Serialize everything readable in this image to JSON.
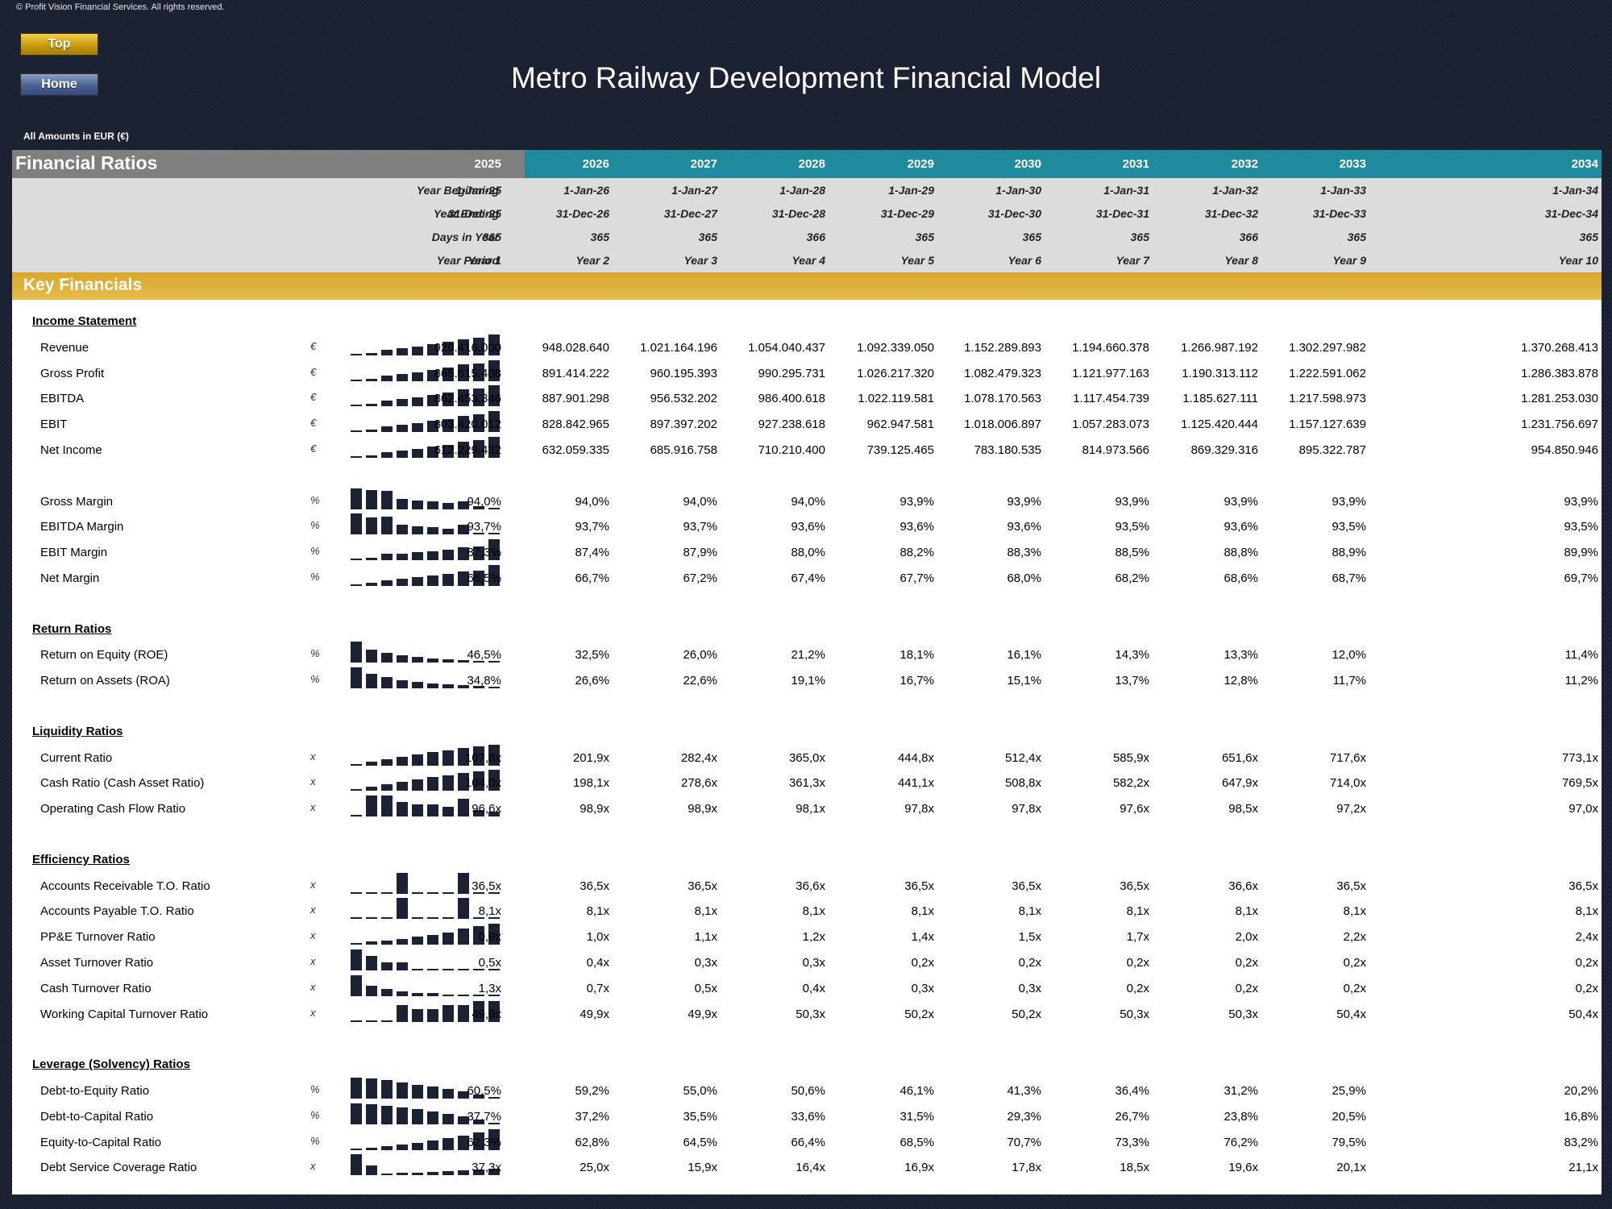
{
  "copyright": "© Profit Vision Financial Services. All rights reserved.",
  "nav": {
    "top": "Top",
    "home": "Home"
  },
  "title": "Metro Railway Development Financial Model",
  "amounts_note": "All Amounts in  EUR (€)",
  "header": {
    "section_title": "Financial Ratios",
    "years": [
      "2025",
      "2026",
      "2027",
      "2028",
      "2029",
      "2030",
      "2031",
      "2032",
      "2033",
      "2034"
    ]
  },
  "year_info": [
    {
      "label": "Year Beginning",
      "values": [
        "1-Jan-25",
        "1-Jan-26",
        "1-Jan-27",
        "1-Jan-28",
        "1-Jan-29",
        "1-Jan-30",
        "1-Jan-31",
        "1-Jan-32",
        "1-Jan-33",
        "1-Jan-34"
      ]
    },
    {
      "label": "Year Ending",
      "values": [
        "31-Dec-25",
        "31-Dec-26",
        "31-Dec-27",
        "31-Dec-28",
        "31-Dec-29",
        "31-Dec-30",
        "31-Dec-31",
        "31-Dec-32",
        "31-Dec-33",
        "31-Dec-34"
      ]
    },
    {
      "label": "Days in Year",
      "values": [
        "365",
        "365",
        "365",
        "366",
        "365",
        "365",
        "365",
        "366",
        "365",
        "365"
      ]
    },
    {
      "label": "Year Period",
      "values": [
        "Year 1",
        "Year 2",
        "Year 3",
        "Year 4",
        "Year 5",
        "Year 6",
        "Year 7",
        "Year 8",
        "Year 9",
        "Year 10"
      ]
    }
  ],
  "band_title": "Key Financials",
  "rows": [
    {
      "type": "section",
      "label": "Income Statement"
    },
    {
      "type": "data",
      "label": "Revenue",
      "unit": "€",
      "spark": [
        920416000,
        948028640,
        1021164196,
        1054040437,
        1092339050,
        1152289893,
        1194660378,
        1266987192,
        1302297982,
        1370268413
      ],
      "values": [
        "920.416.000",
        "948.028.640",
        "1.021.164.196",
        "1.054.040.437",
        "1.092.339.050",
        "1.152.289.893",
        "1.194.660.378",
        "1.266.987.192",
        "1.302.297.982",
        "1.370.268.413"
      ]
    },
    {
      "type": "data",
      "label": "Gross Profit",
      "unit": "€",
      "spark": [
        865615408,
        891414222,
        960195393,
        990295731,
        1026217320,
        1082479323,
        1121977163,
        1190313112,
        1222591062,
        1286383878
      ],
      "values": [
        "865.615.408",
        "891.414.222",
        "960.195.393",
        "990.295.731",
        "1.026.217.320",
        "1.082.479.323",
        "1.121.977.163",
        "1.190.313.112",
        "1.222.591.062",
        "1.286.383.878"
      ]
    },
    {
      "type": "data",
      "label": "EBITDA",
      "unit": "€",
      "spark": [
        862453346,
        887901298,
        956532202,
        986400618,
        1022119581,
        1078170563,
        1117454739,
        1185627111,
        1217598973,
        1281253030
      ],
      "values": [
        "862.453.346",
        "887.901.298",
        "956.532.202",
        "986.400.618",
        "1.022.119.581",
        "1.078.170.563",
        "1.117.454.739",
        "1.185.627.111",
        "1.217.598.973",
        "1.281.253.030"
      ]
    },
    {
      "type": "data",
      "label": "EBIT",
      "unit": "€",
      "spark": [
        803420012,
        828842965,
        897397202,
        927238618,
        962947581,
        1018006897,
        1057283073,
        1125420444,
        1157127639,
        1231756697
      ],
      "values": [
        "803.420.012",
        "828.842.965",
        "897.397.202",
        "927.238.618",
        "962.947.581",
        "1.018.006.897",
        "1.057.283.073",
        "1.125.420.444",
        "1.157.127.639",
        "1.231.756.697"
      ]
    },
    {
      "type": "data",
      "label": "Net Income",
      "unit": "€",
      "spark": [
        612229432,
        632059335,
        685916758,
        710210400,
        739125465,
        783180535,
        814973566,
        869329316,
        895322787,
        954850946
      ],
      "values": [
        "612.229.432",
        "632.059.335",
        "685.916.758",
        "710.210.400",
        "739.125.465",
        "783.180.535",
        "814.973.566",
        "869.329.316",
        "895.322.787",
        "954.850.946"
      ]
    },
    {
      "type": "blank"
    },
    {
      "type": "data",
      "label": "Gross Margin",
      "unit": "%",
      "spark": [
        94.04,
        94.03,
        94.02,
        93.95,
        93.94,
        93.93,
        93.92,
        93.93,
        93.89,
        93.88
      ],
      "values": [
        "94,0%",
        "94,0%",
        "94,0%",
        "94,0%",
        "93,9%",
        "93,9%",
        "93,9%",
        "93,9%",
        "93,9%",
        "93,9%"
      ]
    },
    {
      "type": "data",
      "label": "EBITDA Margin",
      "unit": "%",
      "spark": [
        93.7,
        93.66,
        93.67,
        93.58,
        93.57,
        93.56,
        93.54,
        93.58,
        93.5,
        93.5
      ],
      "values": [
        "93,7%",
        "93,7%",
        "93,7%",
        "93,6%",
        "93,6%",
        "93,6%",
        "93,5%",
        "93,6%",
        "93,5%",
        "93,5%"
      ]
    },
    {
      "type": "data",
      "label": "EBIT Margin",
      "unit": "%",
      "spark": [
        87.3,
        87.4,
        87.9,
        88.0,
        88.2,
        88.3,
        88.5,
        88.8,
        88.9,
        89.9
      ],
      "values": [
        "87,3%",
        "87,4%",
        "87,9%",
        "88,0%",
        "88,2%",
        "88,3%",
        "88,5%",
        "88,8%",
        "88,9%",
        "89,9%"
      ]
    },
    {
      "type": "data",
      "label": "Net Margin",
      "unit": "%",
      "spark": [
        66.5,
        66.7,
        67.2,
        67.4,
        67.7,
        68.0,
        68.2,
        68.6,
        68.7,
        69.7
      ],
      "values": [
        "66,5%",
        "66,7%",
        "67,2%",
        "67,4%",
        "67,7%",
        "68,0%",
        "68,2%",
        "68,6%",
        "68,7%",
        "69,7%"
      ]
    },
    {
      "type": "blank"
    },
    {
      "type": "section",
      "label": "Return Ratios"
    },
    {
      "type": "data",
      "label": "Return on Equity (ROE)",
      "unit": "%",
      "spark": [
        46.5,
        32.5,
        26.0,
        21.2,
        18.1,
        16.1,
        14.3,
        13.3,
        12.0,
        11.4
      ],
      "values": [
        "46,5%",
        "32,5%",
        "26,0%",
        "21,2%",
        "18,1%",
        "16,1%",
        "14,3%",
        "13,3%",
        "12,0%",
        "11,4%"
      ]
    },
    {
      "type": "data",
      "label": "Return on Assets (ROA)",
      "unit": "%",
      "spark": [
        34.8,
        26.6,
        22.6,
        19.1,
        16.7,
        15.1,
        13.7,
        12.8,
        11.7,
        11.2
      ],
      "values": [
        "34,8%",
        "26,6%",
        "22,6%",
        "19,1%",
        "16,7%",
        "15,1%",
        "13,7%",
        "12,8%",
        "11,7%",
        "11,2%"
      ]
    },
    {
      "type": "blank"
    },
    {
      "type": "section",
      "label": "Liquidity Ratios"
    },
    {
      "type": "data",
      "label": "Current Ratio",
      "unit": "x",
      "spark": [
        107.8,
        201.9,
        282.4,
        365.0,
        444.8,
        512.4,
        585.9,
        651.6,
        717.6,
        773.1
      ],
      "values": [
        "107,8x",
        "201,9x",
        "282,4x",
        "365,0x",
        "444,8x",
        "512,4x",
        "585,9x",
        "651,6x",
        "717,6x",
        "773,1x"
      ]
    },
    {
      "type": "data",
      "label": "Cash Ratio (Cash Asset Ratio)",
      "unit": "x",
      "spark": [
        104.0,
        198.1,
        278.6,
        361.3,
        441.1,
        508.8,
        582.2,
        647.9,
        714.0,
        769.5
      ],
      "values": [
        "104,0x",
        "198,1x",
        "278,6x",
        "361,3x",
        "441,1x",
        "508,8x",
        "582,2x",
        "647,9x",
        "714,0x",
        "769,5x"
      ]
    },
    {
      "type": "data",
      "label": "Operating Cash Flow Ratio",
      "unit": "x",
      "spark": [
        96.6,
        98.9,
        98.9,
        98.1,
        97.8,
        97.8,
        97.6,
        98.5,
        97.2,
        97.0
      ],
      "values": [
        "96,6x",
        "98,9x",
        "98,9x",
        "98,1x",
        "97,8x",
        "97,8x",
        "97,6x",
        "98,5x",
        "97,2x",
        "97,0x"
      ]
    },
    {
      "type": "blank"
    },
    {
      "type": "section",
      "label": "Efficiency Ratios"
    },
    {
      "type": "data",
      "label": "Accounts Receivable T.O. Ratio",
      "unit": "x",
      "spark": [
        36.5,
        36.5,
        36.5,
        36.6,
        36.5,
        36.5,
        36.5,
        36.6,
        36.5,
        36.5
      ],
      "values": [
        "36,5x",
        "36,5x",
        "36,5x",
        "36,6x",
        "36,5x",
        "36,5x",
        "36,5x",
        "36,6x",
        "36,5x",
        "36,5x"
      ]
    },
    {
      "type": "data",
      "label": "Accounts Payable T.O. Ratio",
      "unit": "x",
      "spark": [
        8.1,
        8.1,
        8.1,
        8.12,
        8.1,
        8.1,
        8.1,
        8.12,
        8.1,
        8.1
      ],
      "values": [
        "8,1x",
        "8,1x",
        "8,1x",
        "8,1x",
        "8,1x",
        "8,1x",
        "8,1x",
        "8,1x",
        "8,1x",
        "8,1x"
      ]
    },
    {
      "type": "data",
      "label": "PP&E Turnover Ratio",
      "unit": "x",
      "spark": [
        0.9,
        1.0,
        1.1,
        1.2,
        1.4,
        1.5,
        1.7,
        2.0,
        2.2,
        2.4
      ],
      "values": [
        "0,9x",
        "1,0x",
        "1,1x",
        "1,2x",
        "1,4x",
        "1,5x",
        "1,7x",
        "2,0x",
        "2,2x",
        "2,4x"
      ]
    },
    {
      "type": "data",
      "label": "Asset Turnover Ratio",
      "unit": "x",
      "spark": [
        0.5,
        0.4,
        0.3,
        0.3,
        0.2,
        0.2,
        0.2,
        0.2,
        0.2,
        0.2
      ],
      "values": [
        "0,5x",
        "0,4x",
        "0,3x",
        "0,3x",
        "0,2x",
        "0,2x",
        "0,2x",
        "0,2x",
        "0,2x",
        "0,2x"
      ]
    },
    {
      "type": "data",
      "label": "Cash Turnover Ratio",
      "unit": "x",
      "spark": [
        1.3,
        0.7,
        0.5,
        0.4,
        0.3,
        0.3,
        0.2,
        0.2,
        0.2,
        0.2
      ],
      "values": [
        "1,3x",
        "0,7x",
        "0,5x",
        "0,4x",
        "0,3x",
        "0,3x",
        "0,2x",
        "0,2x",
        "0,2x",
        "0,2x"
      ]
    },
    {
      "type": "data",
      "label": "Working Capital Turnover Ratio",
      "unit": "x",
      "spark": [
        49.9,
        49.9,
        49.9,
        50.3,
        50.2,
        50.2,
        50.3,
        50.3,
        50.4,
        50.4
      ],
      "values": [
        "49,9x",
        "49,9x",
        "49,9x",
        "50,3x",
        "50,2x",
        "50,2x",
        "50,3x",
        "50,3x",
        "50,4x",
        "50,4x"
      ]
    },
    {
      "type": "blank"
    },
    {
      "type": "section",
      "label": "Leverage (Solvency) Ratios"
    },
    {
      "type": "data",
      "label": "Debt-to-Equity Ratio",
      "unit": "%",
      "spark": [
        60.5,
        59.2,
        55.0,
        50.6,
        46.1,
        41.3,
        36.4,
        31.2,
        25.9,
        20.2
      ],
      "values": [
        "60,5%",
        "59,2%",
        "55,0%",
        "50,6%",
        "46,1%",
        "41,3%",
        "36,4%",
        "31,2%",
        "25,9%",
        "20,2%"
      ]
    },
    {
      "type": "data",
      "label": "Debt-to-Capital Ratio",
      "unit": "%",
      "spark": [
        37.7,
        37.2,
        35.5,
        33.6,
        31.5,
        29.3,
        26.7,
        23.8,
        20.5,
        16.8
      ],
      "values": [
        "37,7%",
        "37,2%",
        "35,5%",
        "33,6%",
        "31,5%",
        "29,3%",
        "26,7%",
        "23,8%",
        "20,5%",
        "16,8%"
      ]
    },
    {
      "type": "data",
      "label": "Equity-to-Capital Ratio",
      "unit": "%",
      "spark": [
        62.3,
        62.8,
        64.5,
        66.4,
        68.5,
        70.7,
        73.3,
        76.2,
        79.5,
        83.2
      ],
      "values": [
        "62,3%",
        "62,8%",
        "64,5%",
        "66,4%",
        "68,5%",
        "70,7%",
        "73,3%",
        "76,2%",
        "79,5%",
        "83,2%"
      ]
    },
    {
      "type": "data",
      "label": "Debt Service Coverage Ratio",
      "unit": "x",
      "spark": [
        37.3,
        25.0,
        15.9,
        16.4,
        16.9,
        17.8,
        18.5,
        19.6,
        20.1,
        21.1
      ],
      "values": [
        "37,3x",
        "25,0x",
        "15,9x",
        "16,4x",
        "16,9x",
        "17,8x",
        "18,5x",
        "19,6x",
        "20,1x",
        "21,1x"
      ]
    }
  ]
}
